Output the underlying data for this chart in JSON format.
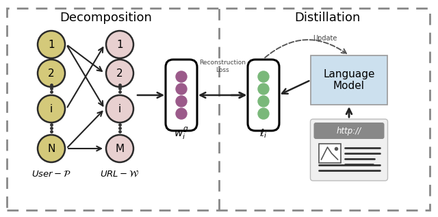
{
  "title_left": "Decomposition",
  "title_right": "Distillation",
  "user_nodes": [
    "1",
    "2",
    "i",
    "N"
  ],
  "url_nodes": [
    "1",
    "2",
    "i",
    "M"
  ],
  "user_color": "#d4c97a",
  "url_color": "#e8d0d0",
  "node_edge_color": "#2a2a2a",
  "purple_dot_color": "#9b5a8a",
  "green_dot_color": "#7ab87a",
  "lm_box_color": "#cce0ee",
  "lm_box_edge": "#999999",
  "webpage_bg": "#e8e8e8",
  "webpage_header": "#888888",
  "arrow_color": "#222222",
  "dashed_border_color": "#888888",
  "label_wi": "$w_i^g$",
  "label_li": "$\\ell_i$",
  "label_recon": "Reconstruction\nLoss",
  "label_update": "Update",
  "label_lm": "Language\nModel",
  "label_http": "http://"
}
